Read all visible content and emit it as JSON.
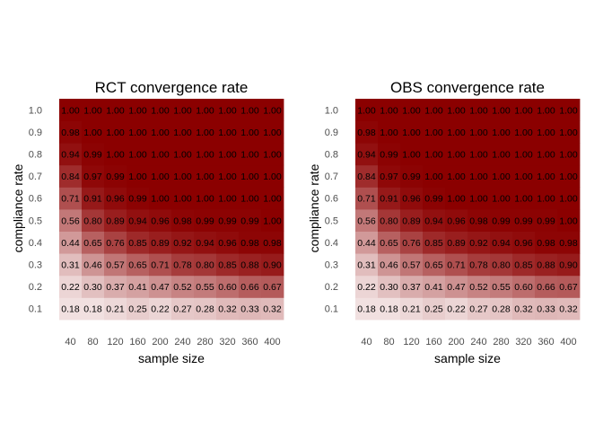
{
  "chart_data": [
    {
      "type": "heatmap",
      "title": "RCT convergence rate",
      "xlabel": "sample size",
      "ylabel": "compliance rate",
      "x": [
        40,
        80,
        120,
        160,
        200,
        240,
        280,
        320,
        360,
        400
      ],
      "y": [
        "0.1",
        "0.2",
        "0.3",
        "0.4",
        "0.5",
        "0.6",
        "0.7",
        "0.8",
        "0.9",
        "1.0"
      ],
      "values": [
        [
          0.18,
          0.18,
          0.21,
          0.25,
          0.22,
          0.27,
          0.28,
          0.32,
          0.33,
          0.32
        ],
        [
          0.22,
          0.3,
          0.37,
          0.41,
          0.47,
          0.52,
          0.55,
          0.6,
          0.66,
          0.67
        ],
        [
          0.31,
          0.46,
          0.57,
          0.65,
          0.71,
          0.78,
          0.8,
          0.85,
          0.88,
          0.9
        ],
        [
          0.44,
          0.65,
          0.76,
          0.85,
          0.89,
          0.92,
          0.94,
          0.96,
          0.98,
          0.98
        ],
        [
          0.56,
          0.8,
          0.89,
          0.94,
          0.96,
          0.98,
          0.99,
          0.99,
          0.99,
          1.0
        ],
        [
          0.71,
          0.91,
          0.96,
          0.99,
          1.0,
          1.0,
          1.0,
          1.0,
          1.0,
          1.0
        ],
        [
          0.84,
          0.97,
          0.99,
          1.0,
          1.0,
          1.0,
          1.0,
          1.0,
          1.0,
          1.0
        ],
        [
          0.94,
          0.99,
          1.0,
          1.0,
          1.0,
          1.0,
          1.0,
          1.0,
          1.0,
          1.0
        ],
        [
          0.98,
          1.0,
          1.0,
          1.0,
          1.0,
          1.0,
          1.0,
          1.0,
          1.0,
          1.0
        ],
        [
          1.0,
          1.0,
          1.0,
          1.0,
          1.0,
          1.0,
          1.0,
          1.0,
          1.0,
          1.0
        ]
      ],
      "color_low": "#ffffff",
      "color_high": "#8b0000",
      "grid": false,
      "legend": "none"
    },
    {
      "type": "heatmap",
      "title": "OBS convergence rate",
      "xlabel": "sample size",
      "ylabel": "compliance rate",
      "x": [
        40,
        80,
        120,
        160,
        200,
        240,
        280,
        320,
        360,
        400
      ],
      "y": [
        "0.1",
        "0.2",
        "0.3",
        "0.4",
        "0.5",
        "0.6",
        "0.7",
        "0.8",
        "0.9",
        "1.0"
      ],
      "values": [
        [
          0.18,
          0.18,
          0.21,
          0.25,
          0.22,
          0.27,
          0.28,
          0.32,
          0.33,
          0.32
        ],
        [
          0.22,
          0.3,
          0.37,
          0.41,
          0.47,
          0.52,
          0.55,
          0.6,
          0.66,
          0.67
        ],
        [
          0.31,
          0.46,
          0.57,
          0.65,
          0.71,
          0.78,
          0.8,
          0.85,
          0.88,
          0.9
        ],
        [
          0.44,
          0.65,
          0.76,
          0.85,
          0.89,
          0.92,
          0.94,
          0.96,
          0.98,
          0.98
        ],
        [
          0.56,
          0.8,
          0.89,
          0.94,
          0.96,
          0.98,
          0.99,
          0.99,
          0.99,
          1.0
        ],
        [
          0.71,
          0.91,
          0.96,
          0.99,
          1.0,
          1.0,
          1.0,
          1.0,
          1.0,
          1.0
        ],
        [
          0.84,
          0.97,
          0.99,
          1.0,
          1.0,
          1.0,
          1.0,
          1.0,
          1.0,
          1.0
        ],
        [
          0.94,
          0.99,
          1.0,
          1.0,
          1.0,
          1.0,
          1.0,
          1.0,
          1.0,
          1.0
        ],
        [
          0.98,
          1.0,
          1.0,
          1.0,
          1.0,
          1.0,
          1.0,
          1.0,
          1.0,
          1.0
        ],
        [
          1.0,
          1.0,
          1.0,
          1.0,
          1.0,
          1.0,
          1.0,
          1.0,
          1.0,
          1.0
        ]
      ],
      "color_low": "#ffffff",
      "color_high": "#8b0000",
      "grid": false,
      "legend": "none"
    }
  ]
}
